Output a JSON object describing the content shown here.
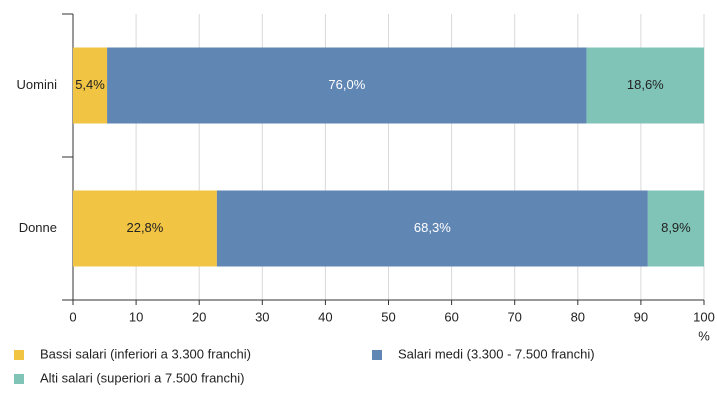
{
  "chart_data": {
    "type": "stacked-bar-horizontal",
    "categories": [
      "Uomini",
      "Donne"
    ],
    "series": [
      {
        "name": "Bassi salari (inferiori a 3.300 franchi)",
        "color": "#f2c443",
        "label_color": "#222222",
        "values": [
          5.4,
          22.8
        ],
        "value_labels": [
          "5,4%",
          "22,8%"
        ]
      },
      {
        "name": "Salari medi (3.300 - 7.500 franchi)",
        "color": "#6086b4",
        "label_color": "#ffffff",
        "values": [
          76.0,
          68.3
        ],
        "value_labels": [
          "76,0%",
          "68,3%"
        ]
      },
      {
        "name": "Alti salari (superiori a 7.500 franchi)",
        "color": "#80c4b8",
        "label_color": "#222222",
        "values": [
          18.6,
          8.9
        ],
        "value_labels": [
          "18,6%",
          "8,9%"
        ]
      }
    ],
    "xlabel": "%",
    "xlim": [
      0,
      100
    ],
    "xticks": [
      0,
      10,
      20,
      30,
      40,
      50,
      60,
      70,
      80,
      90,
      100
    ],
    "grid": true
  }
}
